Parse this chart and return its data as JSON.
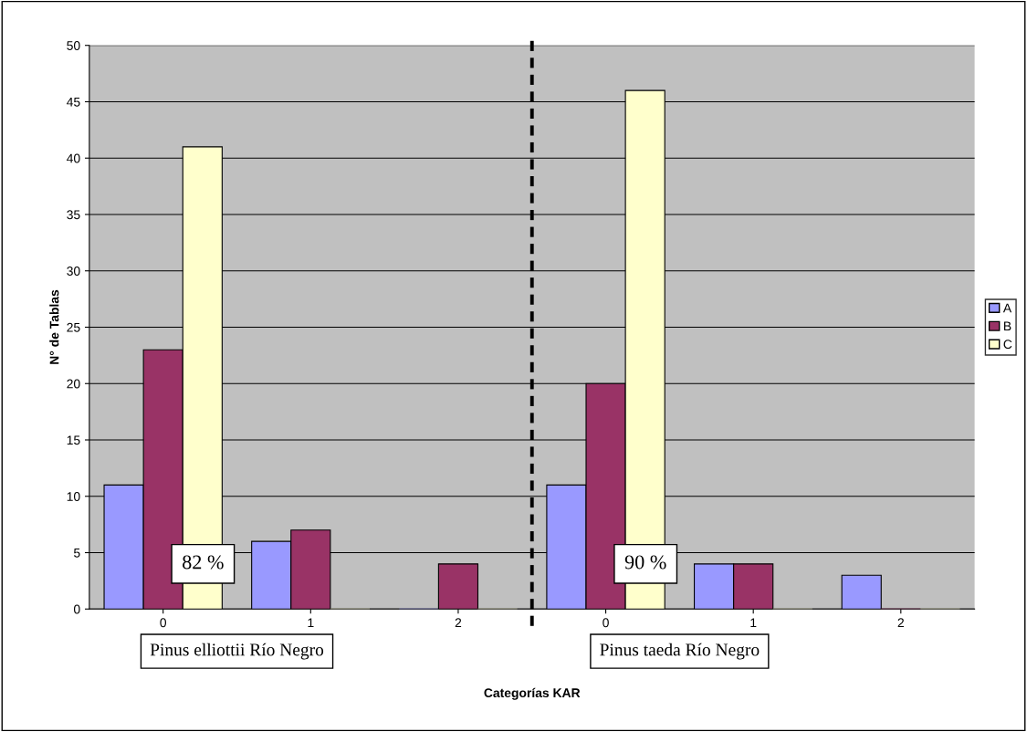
{
  "chart_data": {
    "type": "bar",
    "xlabel": "Categorías KAR",
    "ylabel": "N° de Tablas",
    "categories": [
      "0",
      "1",
      "2",
      "0",
      "1",
      "2"
    ],
    "series": [
      {
        "name": "A",
        "color": "#9999ff",
        "values": [
          11,
          6,
          0,
          11,
          4,
          3
        ]
      },
      {
        "name": "B",
        "color": "#993366",
        "values": [
          23,
          7,
          4,
          20,
          4,
          0
        ]
      },
      {
        "name": "C",
        "color": "#ffffcc",
        "values": [
          41,
          0,
          0,
          46,
          0,
          0
        ]
      }
    ],
    "ylim": [
      0,
      50
    ],
    "yticks": [
      0,
      5,
      10,
      15,
      20,
      25,
      30,
      35,
      40,
      45,
      50
    ],
    "grid": "y",
    "legend": "right",
    "annotations": [
      "82 %",
      "90 %",
      "Pinus elliottii Río Negro",
      "Pinus taeda Río Negro"
    ]
  }
}
